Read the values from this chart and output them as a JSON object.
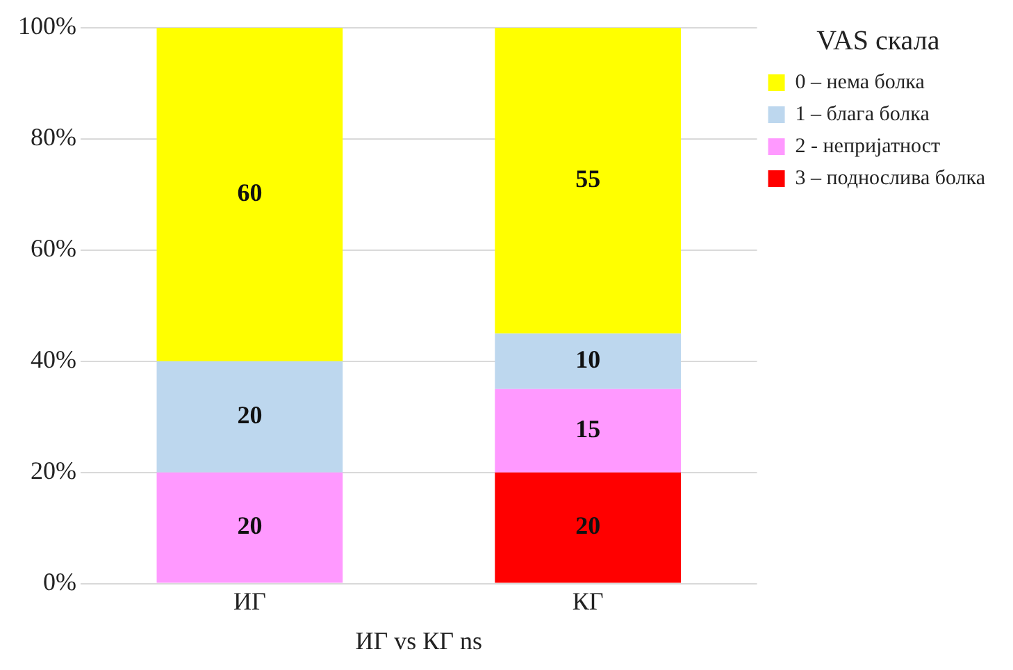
{
  "chart_data": {
    "type": "bar",
    "stacked": true,
    "xlabel": "ИГ vs КГ ns",
    "legend_title": "VAS скала",
    "legend": "right",
    "grid": "y",
    "categories": [
      "ИГ",
      "КГ"
    ],
    "ylim": [
      0,
      100
    ],
    "yticks": [
      {
        "value": 0,
        "label": "0%"
      },
      {
        "value": 20,
        "label": "20%"
      },
      {
        "value": 40,
        "label": "40%"
      },
      {
        "value": 60,
        "label": "60%"
      },
      {
        "value": 80,
        "label": "80%"
      },
      {
        "value": 100,
        "label": "100%"
      }
    ],
    "series": [
      {
        "name": "3 – поднослива болка",
        "color": "#ff0000",
        "values": [
          0,
          20
        ],
        "value_labels": [
          null,
          "20"
        ]
      },
      {
        "name": "2 - непријатност",
        "color": "#ff99ff",
        "values": [
          20,
          15
        ],
        "value_labels": [
          "20",
          "15"
        ]
      },
      {
        "name": "1 – блага болка",
        "color": "#bdd7ee",
        "values": [
          20,
          10
        ],
        "value_labels": [
          "20",
          "10"
        ]
      },
      {
        "name": "0 – нема болка",
        "color": "#ffff00",
        "values": [
          60,
          55
        ],
        "value_labels": [
          "60",
          "55"
        ]
      }
    ]
  }
}
